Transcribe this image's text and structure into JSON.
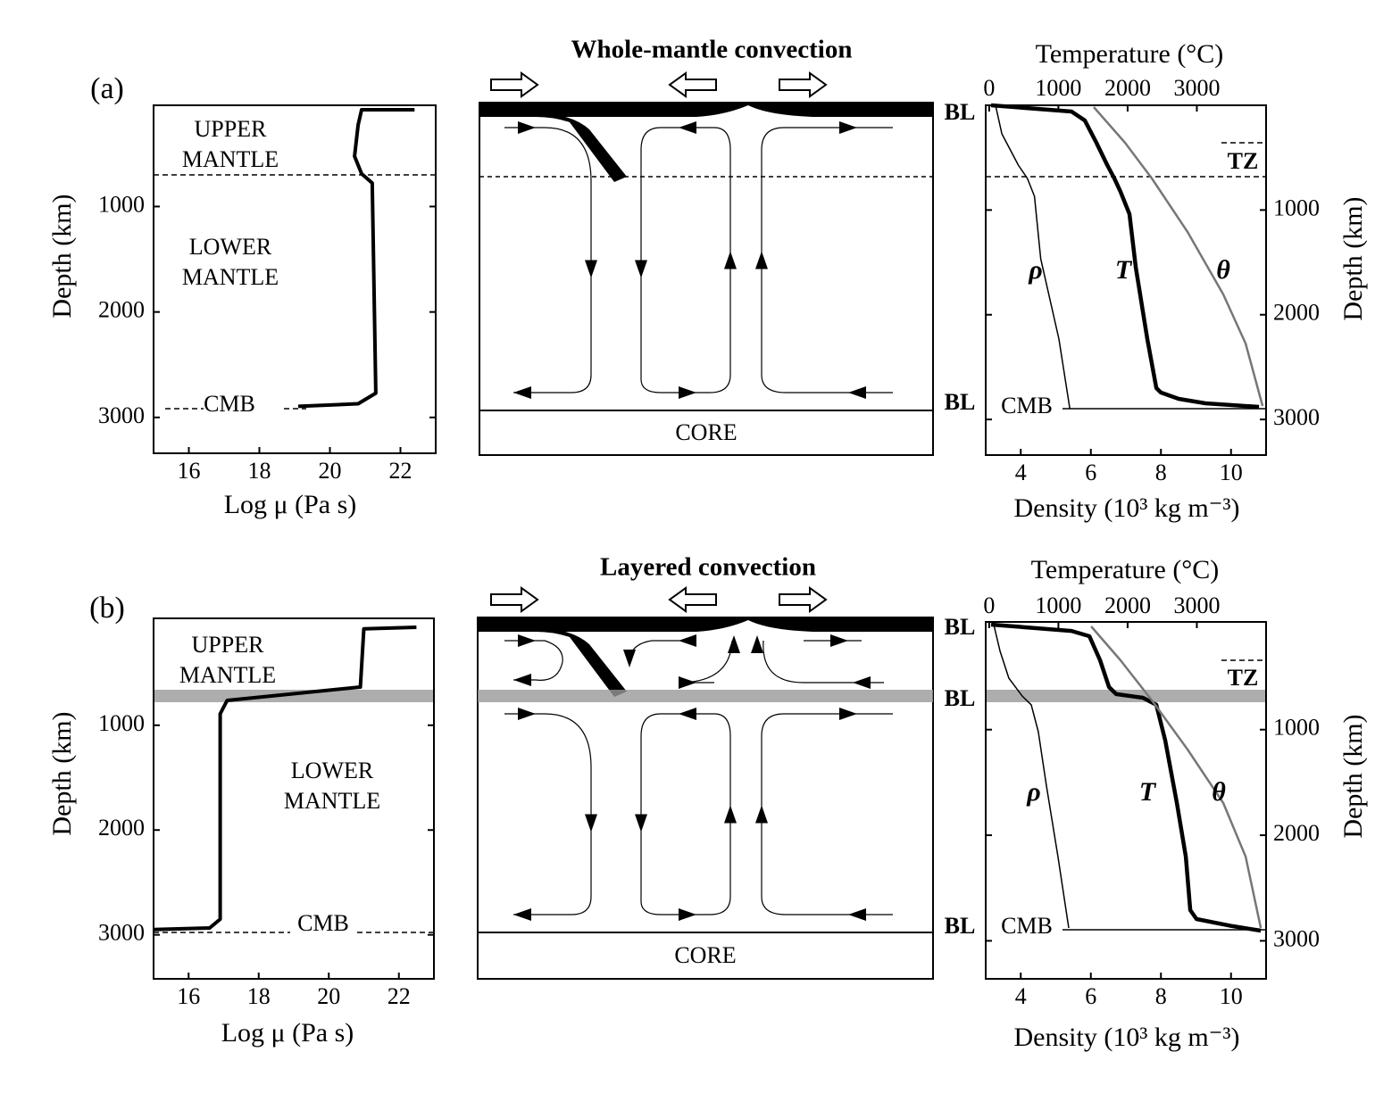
{
  "panel_labels": [
    "(a)",
    "(b)"
  ],
  "diagrams": [
    {
      "title": "Whole-mantle convection",
      "core_label": "CORE",
      "boundary_labels": [
        "BL",
        "BL"
      ]
    },
    {
      "title": "Layered convection",
      "core_label": "CORE",
      "boundary_labels": [
        "BL",
        "BL",
        "BL"
      ]
    }
  ],
  "chart_data": [
    {
      "type": "line",
      "xlabel": "Log μ  (Pa s)",
      "ylabel": "Depth (km)",
      "xlim": [
        15,
        23
      ],
      "xticks": [
        16,
        18,
        20,
        22
      ],
      "ylim": [
        40,
        3340
      ],
      "yticks": [
        1000,
        2000,
        3000
      ],
      "y_inverted": true,
      "annotations": [
        "UPPER",
        "MANTLE",
        "LOWER",
        "MANTLE",
        "CMB"
      ],
      "series": [
        {
          "color": "#000000",
          "x": [
            22.4,
            20.9,
            20.8,
            20.7,
            20.9,
            21.2,
            21.3,
            20.8,
            19.1
          ],
          "values": [
            82,
            82,
            226,
            523,
            690,
            777,
            2770,
            2870,
            2895
          ]
        }
      ]
    },
    {
      "type": "line",
      "xlabel": "Density (10³ kg m⁻³)",
      "x2label": "Temperature (°C)",
      "ylabel": "Depth (km)",
      "xlim": [
        3,
        11
      ],
      "xticks": [
        4,
        6,
        8,
        10
      ],
      "x2lim": [
        -50,
        4000
      ],
      "x2ticks": [
        0,
        1000,
        2000,
        3000
      ],
      "ylim": [
        0,
        3340
      ],
      "yticks": [
        1000,
        2000,
        3000
      ],
      "y_inverted": true,
      "yaxis_side": "right",
      "annotations": [
        "TZ",
        "CMB"
      ],
      "series": [
        {
          "name": "ρ",
          "color": "#000000",
          "x": [
            3.28,
            3.46,
            3.93,
            4.19,
            4.39,
            4.57,
            5.09,
            5.4
          ],
          "values": [
            0,
            273,
            571,
            699,
            869,
            1465,
            2232,
            2897
          ]
        },
        {
          "name": "T",
          "color": "#000000",
          "axis": "x2",
          "x": [
            27,
            1189,
            1382,
            1550,
            1705,
            1808,
            1898,
            2027,
            2118,
            2285,
            2415,
            2479,
            2737,
            3124,
            3898
          ],
          "values": [
            0,
            60,
            145,
            358,
            571,
            699,
            826,
            1039,
            1550,
            2232,
            2700,
            2743,
            2803,
            2846,
            2880
          ]
        },
        {
          "name": "θ",
          "color": "#777777",
          "axis": "x2",
          "x": [
            1511,
            1963,
            2350,
            2866,
            3382,
            3705,
            3950
          ],
          "values": [
            17,
            358,
            699,
            1210,
            1806,
            2275,
            2871
          ]
        }
      ]
    },
    {
      "type": "line",
      "xlabel": "Log μ  (Pa s)",
      "ylabel": "Depth (km)",
      "xlim": [
        15,
        23
      ],
      "xticks": [
        16,
        18,
        20,
        22
      ],
      "ylim": [
        -20,
        3420
      ],
      "yticks": [
        1000,
        2000,
        3000
      ],
      "y_inverted": true,
      "annotations": [
        "UPPER",
        "MANTLE",
        "LOWER",
        "MANTLE",
        "CMB"
      ],
      "series": [
        {
          "color": "#000000",
          "x": [
            22.5,
            21.0,
            20.9,
            17.1,
            16.9,
            16.9,
            16.6,
            15.0
          ],
          "values": [
            65,
            80,
            636,
            763,
            891,
            2850,
            2935,
            2950
          ]
        }
      ]
    },
    {
      "type": "line",
      "xlabel": "Density (10³ kg m⁻³)",
      "x2label": "Temperature (°C)",
      "ylabel": "Depth (km)",
      "xlim": [
        3,
        11
      ],
      "xticks": [
        4,
        6,
        8,
        10
      ],
      "x2lim": [
        -50,
        4000
      ],
      "x2ticks": [
        0,
        1000,
        2000,
        3000
      ],
      "ylim": [
        -20,
        3360
      ],
      "yticks": [
        1000,
        2000,
        3000
      ],
      "y_inverted": true,
      "yaxis_side": "right",
      "annotations": [
        "TZ",
        "CMB"
      ],
      "series": [
        {
          "name": "ρ",
          "color": "#000000",
          "x": [
            3.23,
            3.41,
            3.66,
            4.04,
            4.3,
            4.5,
            4.73,
            5.06,
            5.37
          ],
          "values": [
            5,
            258,
            512,
            681,
            765,
            1019,
            1526,
            2202,
            2878
          ]
        },
        {
          "name": "T",
          "color": "#000000",
          "axis": "x2",
          "x": [
            27,
            1189,
            1447,
            1602,
            1731,
            1834,
            2221,
            2415,
            2544,
            2711,
            2840,
            2905,
            2995,
            3511,
            3924
          ],
          "values": [
            5,
            65,
            115,
            343,
            597,
            664,
            698,
            765,
            1104,
            1695,
            2202,
            2709,
            2794,
            2861,
            2904
          ]
        },
        {
          "name": "θ",
          "color": "#777777",
          "axis": "x2",
          "x": [
            1473,
            1898,
            2350,
            2866,
            3382,
            3705,
            3924
          ],
          "values": [
            22,
            343,
            723,
            1188,
            1695,
            2202,
            2878
          ]
        }
      ]
    }
  ]
}
